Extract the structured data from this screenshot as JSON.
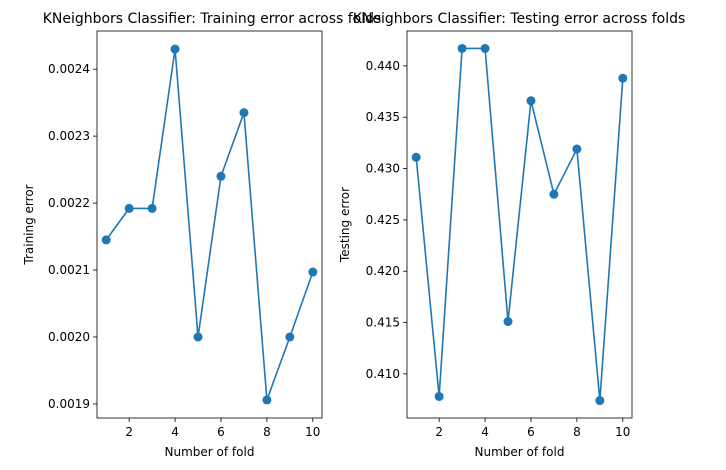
{
  "line_color": "#1f77b4",
  "chart_data": [
    {
      "type": "line",
      "title": "KNeighbors Classifier: Training error across folds",
      "xlabel": "Number of fold",
      "ylabel": "Training error",
      "x": [
        1,
        2,
        3,
        4,
        5,
        6,
        7,
        8,
        9,
        10
      ],
      "values": [
        0.002145,
        0.002192,
        0.002192,
        0.00243,
        0.002,
        0.00224,
        0.002335,
        0.001906,
        0.002,
        0.002097
      ],
      "xlim": [
        0.6,
        10.4
      ],
      "ylim": [
        0.001879,
        0.002457
      ],
      "xticks": [
        2,
        4,
        6,
        8,
        10
      ],
      "yticks": [
        0.0019,
        0.002,
        0.0021,
        0.0022,
        0.0023,
        0.0024
      ],
      "ytick_labels": [
        "0.0019",
        "0.0020",
        "0.0021",
        "0.0022",
        "0.0023",
        "0.0024"
      ],
      "marker": "circle",
      "grid": false
    },
    {
      "type": "line",
      "title": "KNeighbors Classifier: Testing error across folds",
      "xlabel": "Number of fold",
      "ylabel": "Testing error",
      "x": [
        1,
        2,
        3,
        4,
        5,
        6,
        7,
        8,
        9,
        10
      ],
      "values": [
        0.4311,
        0.4078,
        0.4417,
        0.4417,
        0.4151,
        0.4366,
        0.4275,
        0.4319,
        0.4074,
        0.4388
      ],
      "xlim": [
        0.6,
        10.4
      ],
      "ylim": [
        0.4057,
        0.4434
      ],
      "xticks": [
        2,
        4,
        6,
        8,
        10
      ],
      "yticks": [
        0.41,
        0.415,
        0.42,
        0.425,
        0.43,
        0.435,
        0.44
      ],
      "ytick_labels": [
        "0.410",
        "0.415",
        "0.420",
        "0.425",
        "0.430",
        "0.435",
        "0.440"
      ],
      "marker": "circle",
      "grid": false
    }
  ]
}
